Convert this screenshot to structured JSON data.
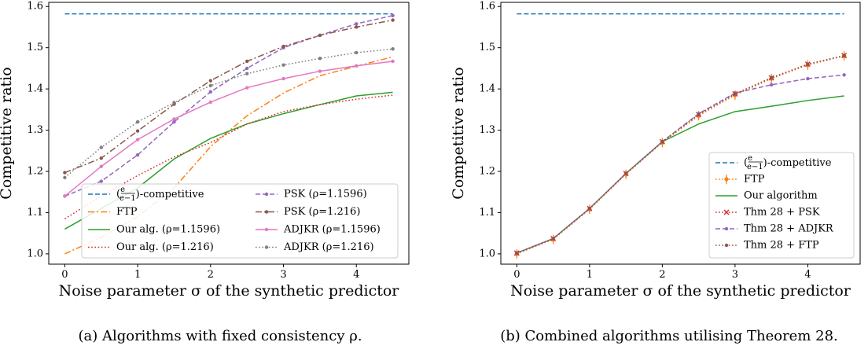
{
  "figure": {
    "captions": [
      "(a) Algorithms with fixed consistency ρ.",
      "(b) Combined algorithms utilising Theorem 28."
    ]
  },
  "chart_data": [
    {
      "type": "line",
      "xlabel": "Noise parameter σ of the synthetic predictor",
      "ylabel": "Competitive ratio",
      "xlim": [
        -0.22,
        4.72
      ],
      "ylim": [
        0.975,
        1.61
      ],
      "xticks": [
        0,
        1,
        2,
        3,
        4
      ],
      "yticks": [
        1.0,
        1.1,
        1.2,
        1.3,
        1.4,
        1.5,
        1.6
      ],
      "grid": false,
      "legend_position": "lower-right",
      "legend_columns": 2,
      "x": [
        0,
        0.5,
        1,
        1.5,
        2,
        2.5,
        3,
        3.5,
        4,
        4.5
      ],
      "series": [
        {
          "name": "(e/(e−1))-competitive",
          "color": "#1f77b4",
          "dash": "dashed",
          "marker": "none",
          "x": [
            0,
            4.5
          ],
          "values": [
            1.582,
            1.582
          ]
        },
        {
          "name": "FTP",
          "color": "#ff7f0e",
          "dash": "dashdot",
          "marker": "none",
          "values": [
            1.0,
            1.04,
            1.09,
            1.16,
            1.26,
            1.335,
            1.39,
            1.432,
            1.455,
            1.478
          ]
        },
        {
          "name": "Our alg. (ρ=1.1596)",
          "color": "#2ca02c",
          "dash": "solid",
          "marker": "none",
          "values": [
            1.06,
            1.11,
            1.16,
            1.23,
            1.28,
            1.315,
            1.34,
            1.362,
            1.383,
            1.392
          ]
        },
        {
          "name": "Our alg. (ρ=1.216)",
          "color": "#d62728",
          "dash": "dotted",
          "marker": "none",
          "values": [
            1.085,
            1.14,
            1.19,
            1.235,
            1.27,
            1.315,
            1.345,
            1.362,
            1.375,
            1.385
          ]
        },
        {
          "name": "PSK (ρ=1.1596)",
          "color": "#9467bd",
          "dash": "dashed",
          "marker": "dot",
          "values": [
            1.14,
            1.176,
            1.24,
            1.32,
            1.393,
            1.45,
            1.5,
            1.53,
            1.558,
            1.578
          ]
        },
        {
          "name": "PSK (ρ=1.216)",
          "color": "#8c564b",
          "dash": "dashdot",
          "marker": "dot",
          "values": [
            1.197,
            1.232,
            1.298,
            1.363,
            1.42,
            1.467,
            1.503,
            1.53,
            1.55,
            1.567
          ]
        },
        {
          "name": "ADJKR (ρ=1.1596)",
          "color": "#e377c2",
          "dash": "solid",
          "marker": "dot",
          "values": [
            1.14,
            1.212,
            1.277,
            1.327,
            1.368,
            1.403,
            1.425,
            1.443,
            1.456,
            1.467
          ]
        },
        {
          "name": "ADJKR (ρ=1.216)",
          "color": "#7f7f7f",
          "dash": "dotted",
          "marker": "dot",
          "values": [
            1.185,
            1.258,
            1.32,
            1.367,
            1.408,
            1.437,
            1.458,
            1.474,
            1.488,
            1.497
          ]
        }
      ]
    },
    {
      "type": "line",
      "xlabel": "Noise parameter σ of the synthetic predictor",
      "ylabel": "Competitive ratio",
      "xlim": [
        -0.22,
        4.72
      ],
      "ylim": [
        0.975,
        1.61
      ],
      "xticks": [
        0,
        1,
        2,
        3,
        4
      ],
      "yticks": [
        1.0,
        1.1,
        1.2,
        1.3,
        1.4,
        1.5,
        1.6
      ],
      "grid": false,
      "legend_position": "lower-right",
      "legend_columns": 1,
      "x": [
        0,
        0.5,
        1,
        1.5,
        2,
        2.5,
        3,
        3.5,
        4,
        4.5
      ],
      "series": [
        {
          "name": "(e/(e−1))-competitive",
          "color": "#1f77b4",
          "dash": "dashed",
          "marker": "none",
          "x": [
            0,
            4.5
          ],
          "values": [
            1.582,
            1.582
          ]
        },
        {
          "name": "FTP",
          "color": "#ff7f0e",
          "dash": "dotted",
          "marker": "diamond-errorbar",
          "values": [
            1.0,
            1.035,
            1.108,
            1.193,
            1.27,
            1.335,
            1.385,
            1.425,
            1.458,
            1.48
          ]
        },
        {
          "name": "Our algorithm",
          "color": "#2ca02c",
          "dash": "solid",
          "marker": "none",
          "values": [
            1.002,
            1.037,
            1.11,
            1.195,
            1.272,
            1.315,
            1.345,
            1.358,
            1.372,
            1.383
          ]
        },
        {
          "name": "Thm 28 + PSK",
          "color": "#d62728",
          "dash": "dotted",
          "marker": "x",
          "values": [
            1.002,
            1.037,
            1.11,
            1.195,
            1.272,
            1.338,
            1.388,
            1.427,
            1.46,
            1.481
          ]
        },
        {
          "name": "Thm 28 + ADJKR",
          "color": "#9467bd",
          "dash": "dashed",
          "marker": "dot",
          "values": [
            1.002,
            1.037,
            1.11,
            1.195,
            1.272,
            1.34,
            1.39,
            1.41,
            1.425,
            1.434
          ]
        },
        {
          "name": "Thm 28 + FTP",
          "color": "#8c564b",
          "dash": "dotted",
          "marker": "dot",
          "values": [
            1.002,
            1.037,
            1.11,
            1.195,
            1.272,
            1.338,
            1.388,
            1.427,
            1.46,
            1.481
          ]
        }
      ]
    }
  ]
}
